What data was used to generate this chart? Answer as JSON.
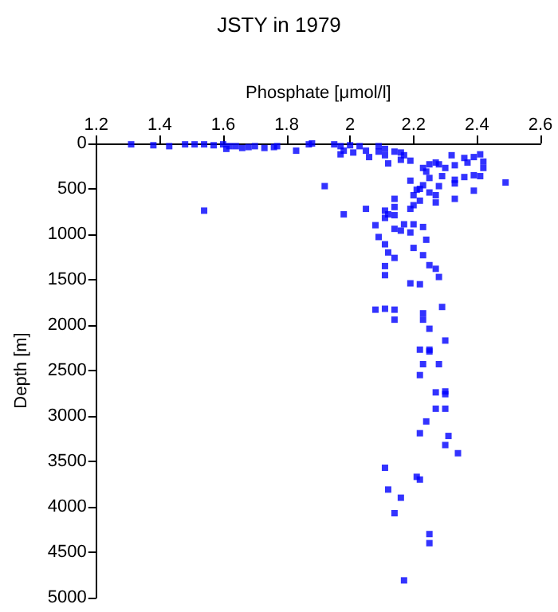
{
  "chart_data": {
    "type": "scatter",
    "title": "JSTY in 1979",
    "xlabel": "Phosphate [μmol/l]",
    "ylabel": "Depth [m]",
    "xlim": [
      1.2,
      2.6
    ],
    "xticks": [
      1.2,
      1.4,
      1.6,
      1.8,
      2,
      2.2,
      2.4,
      2.6
    ],
    "ylim": [
      5000,
      0
    ],
    "yticks": [
      0,
      500,
      1000,
      1500,
      2000,
      2500,
      3000,
      3500,
      4000,
      4500,
      5000
    ],
    "grid": false,
    "marker": "square",
    "series": [
      {
        "color": "#0000ff",
        "x": [
          1.31,
          1.38,
          1.43,
          1.48,
          1.51,
          1.54,
          1.57,
          1.6,
          1.61,
          1.62,
          1.64,
          1.66,
          1.68,
          1.7,
          1.73,
          1.76,
          1.77,
          1.83,
          1.87,
          1.88,
          1.54,
          1.95,
          1.97,
          1.97,
          1.98,
          2.0,
          2.01,
          2.03,
          2.05,
          2.06,
          2.09,
          2.09,
          2.11,
          2.11,
          2.12,
          2.14,
          2.16,
          2.16,
          2.17,
          2.19,
          2.23,
          2.24,
          2.25,
          2.25,
          2.27,
          2.28,
          2.29,
          2.3,
          2.32,
          2.33,
          2.33,
          2.33,
          2.36,
          2.36,
          2.37,
          2.39,
          2.39,
          2.39,
          2.41,
          2.41,
          2.42,
          2.42,
          2.49,
          1.92,
          2.19,
          2.21,
          2.23,
          2.2,
          2.22,
          2.25,
          2.27,
          2.28,
          2.27,
          2.22,
          2.2,
          2.19,
          2.14,
          2.14,
          2.11,
          2.12,
          2.11,
          2.14,
          2.33,
          1.98,
          2.05,
          2.08,
          2.14,
          2.16,
          2.17,
          2.19,
          2.2,
          2.23,
          2.09,
          2.24,
          2.11,
          2.2,
          2.23,
          2.12,
          2.14,
          2.11,
          2.25,
          2.27,
          2.11,
          2.28,
          2.19,
          2.22,
          2.08,
          2.11,
          2.14,
          2.29,
          2.23,
          2.14,
          2.23,
          2.25,
          2.3,
          2.22,
          2.25,
          2.25,
          2.23,
          2.28,
          2.22,
          2.27,
          2.3,
          2.3,
          2.27,
          2.3,
          2.24,
          2.22,
          2.31,
          2.3,
          2.34,
          2.11,
          2.21,
          2.22,
          2.12,
          2.16,
          2.14,
          2.25,
          2.25,
          2.17
        ],
        "values": [
          10,
          20,
          30,
          10,
          10,
          10,
          20,
          10,
          60,
          30,
          30,
          50,
          40,
          30,
          50,
          40,
          30,
          80,
          10,
          0,
          740,
          10,
          30,
          120,
          80,
          20,
          100,
          30,
          80,
          150,
          30,
          90,
          60,
          130,
          220,
          90,
          100,
          180,
          130,
          190,
          270,
          310,
          230,
          380,
          210,
          230,
          360,
          270,
          130,
          240,
          400,
          440,
          370,
          160,
          210,
          350,
          520,
          150,
          120,
          360,
          200,
          270,
          430,
          470,
          410,
          510,
          460,
          570,
          500,
          540,
          570,
          470,
          650,
          630,
          680,
          720,
          610,
          700,
          740,
          780,
          820,
          790,
          610,
          780,
          720,
          900,
          940,
          960,
          890,
          980,
          890,
          920,
          1030,
          1060,
          1110,
          1150,
          1230,
          1200,
          1260,
          1350,
          1340,
          1380,
          1450,
          1470,
          1540,
          1550,
          1830,
          1820,
          1830,
          1800,
          1870,
          1940,
          1940,
          2040,
          2170,
          2270,
          2270,
          2290,
          2430,
          2430,
          2550,
          2740,
          2730,
          2760,
          2920,
          2920,
          3060,
          3190,
          3220,
          3320,
          3410,
          3570,
          3670,
          3700,
          3810,
          3900,
          4070,
          4300,
          4400,
          4810
        ]
      }
    ]
  }
}
